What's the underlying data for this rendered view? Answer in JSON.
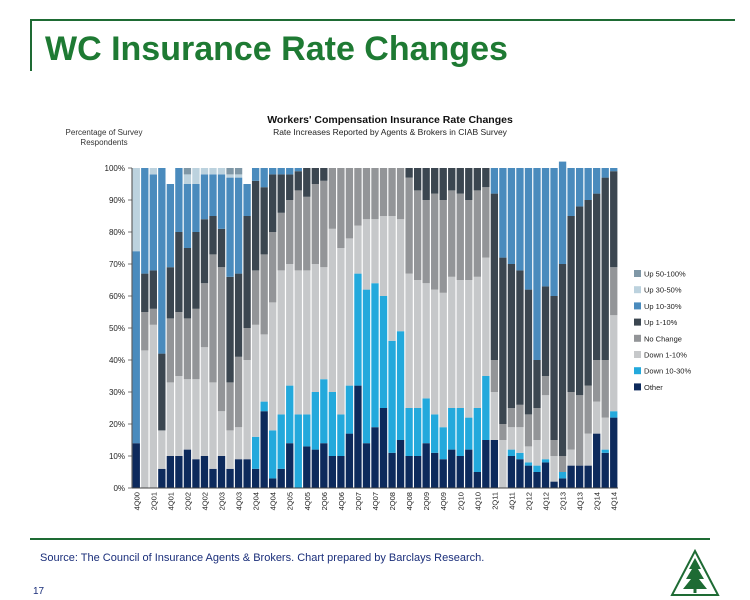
{
  "slide": {
    "title": "WC Insurance Rate Changes",
    "source": "Source: The Council of Insurance Agents & Brokers.  Chart prepared by Barclays Research.",
    "page_number": "17",
    "accent_color": "#1e7a33",
    "logo_icon": "tree-logo-icon"
  },
  "chart_data": {
    "type": "bar",
    "stacked": true,
    "title": "Workers' Compensation Insurance Rate Changes",
    "subtitle": "Rate Increases Reported by Agents & Brokers in CIAB Survey",
    "ylabel": "Percentage of Survey Respondents",
    "ylim": [
      0,
      100
    ],
    "yticks": [
      "0%",
      "10%",
      "20%",
      "30%",
      "40%",
      "50%",
      "60%",
      "70%",
      "80%",
      "90%",
      "100%"
    ],
    "grid": false,
    "legend_position": "right",
    "categories": [
      "4Q00",
      "1Q01",
      "2Q01",
      "3Q01",
      "4Q01",
      "1Q02",
      "2Q02",
      "3Q02",
      "4Q02",
      "1Q03",
      "2Q03",
      "3Q03",
      "4Q03",
      "1Q04",
      "2Q04",
      "3Q04",
      "4Q04",
      "1Q05",
      "2Q05",
      "3Q05",
      "4Q05",
      "1Q06",
      "2Q06",
      "3Q06",
      "4Q06",
      "1Q07",
      "2Q07",
      "3Q07",
      "4Q07",
      "1Q08",
      "2Q08",
      "3Q08",
      "4Q08",
      "1Q09",
      "2Q09",
      "3Q09",
      "4Q09",
      "1Q10",
      "2Q10",
      "3Q10",
      "4Q10",
      "1Q11",
      "2Q11",
      "3Q11",
      "4Q11",
      "1Q12",
      "2Q12",
      "3Q12",
      "4Q12",
      "1Q13",
      "2Q13",
      "3Q13",
      "4Q13",
      "1Q14",
      "2Q14",
      "3Q14",
      "4Q14"
    ],
    "tick_labels": [
      "4Q00",
      "2Q01",
      "4Q01",
      "2Q02",
      "4Q02",
      "2Q03",
      "4Q03",
      "2Q04",
      "4Q04",
      "2Q05",
      "4Q05",
      "2Q06",
      "4Q06",
      "2Q07",
      "4Q07",
      "2Q08",
      "4Q08",
      "2Q09",
      "4Q09",
      "2Q10",
      "4Q10",
      "2Q11",
      "4Q11",
      "2Q12",
      "4Q12",
      "2Q13",
      "4Q13",
      "2Q14",
      "4Q14"
    ],
    "series": [
      {
        "name": "Up 50-100%",
        "color": "#7f97a6",
        "values": [
          0,
          0,
          0,
          0,
          0,
          0,
          2,
          0,
          0,
          0,
          0,
          2,
          2,
          0,
          0,
          0,
          0,
          0,
          0,
          0,
          0,
          0,
          0,
          0,
          0,
          0,
          0,
          0,
          0,
          0,
          0,
          0,
          0,
          0,
          0,
          0,
          0,
          0,
          0,
          0,
          0,
          0,
          0,
          0,
          0,
          0,
          0,
          0,
          0,
          0,
          0,
          0,
          0,
          0,
          0,
          0,
          0
        ]
      },
      {
        "name": "Up 30-50%",
        "color": "#bcd2de",
        "values": [
          26,
          0,
          2,
          0,
          0,
          0,
          3,
          5,
          2,
          2,
          2,
          1,
          1,
          0,
          0,
          0,
          0,
          0,
          0,
          0,
          0,
          0,
          0,
          0,
          0,
          0,
          0,
          0,
          0,
          0,
          0,
          0,
          0,
          0,
          0,
          0,
          0,
          0,
          0,
          0,
          0,
          0,
          0,
          0,
          0,
          0,
          0,
          0,
          0,
          0,
          0,
          0,
          0,
          0,
          0,
          0,
          0
        ]
      },
      {
        "name": "Up 10-30%",
        "color": "#4a8bbd",
        "values": [
          60,
          33,
          30,
          58,
          26,
          20,
          20,
          15,
          14,
          13,
          17,
          31,
          30,
          10,
          4,
          6,
          2,
          2,
          2,
          1,
          0,
          0,
          0,
          0,
          0,
          0,
          0,
          0,
          0,
          0,
          0,
          0,
          0,
          0,
          0,
          0,
          0,
          0,
          0,
          0,
          0,
          0,
          8,
          28,
          30,
          32,
          38,
          60,
          37,
          40,
          32,
          15,
          12,
          10,
          8,
          3,
          1
        ]
      },
      {
        "name": "Up 1-10%",
        "color": "#3b4650",
        "values": [
          0,
          12,
          12,
          24,
          16,
          25,
          22,
          24,
          20,
          12,
          12,
          33,
          26,
          35,
          28,
          21,
          18,
          12,
          8,
          6,
          9,
          5,
          4,
          0,
          0,
          0,
          0,
          0,
          0,
          0,
          0,
          0,
          3,
          7,
          10,
          8,
          10,
          7,
          8,
          10,
          7,
          6,
          52,
          52,
          45,
          42,
          39,
          15,
          28,
          45,
          60,
          55,
          59,
          58,
          52,
          57,
          30
        ]
      },
      {
        "name": "No Change",
        "color": "#939598",
        "values": [
          0,
          12,
          5,
          0,
          20,
          20,
          19,
          22,
          20,
          40,
          45,
          15,
          22,
          10,
          17,
          25,
          22,
          18,
          20,
          25,
          23,
          25,
          27,
          19,
          25,
          22,
          18,
          16,
          16,
          15,
          15,
          16,
          30,
          28,
          26,
          30,
          29,
          27,
          27,
          25,
          27,
          22,
          10,
          5,
          6,
          7,
          10,
          10,
          6,
          5,
          5,
          18,
          22,
          15,
          13,
          18,
          15
        ]
      },
      {
        "name": "Down 1-10%",
        "color": "#c6c8ca",
        "values": [
          0,
          43,
          51,
          12,
          23,
          25,
          22,
          25,
          34,
          27,
          14,
          12,
          10,
          31,
          35,
          21,
          40,
          45,
          38,
          45,
          45,
          40,
          35,
          51,
          52,
          46,
          15,
          22,
          20,
          25,
          39,
          35,
          42,
          40,
          36,
          39,
          42,
          41,
          40,
          43,
          41,
          37,
          15,
          15,
          7,
          8,
          5,
          8,
          20,
          8,
          0,
          5,
          0,
          10,
          10,
          10,
          30
        ]
      },
      {
        "name": "Down 10-30%",
        "color": "#23a9dc",
        "values": [
          0,
          0,
          0,
          0,
          0,
          0,
          0,
          0,
          0,
          0,
          0,
          0,
          0,
          0,
          10,
          3,
          15,
          17,
          18,
          23,
          10,
          18,
          20,
          20,
          13,
          15,
          35,
          48,
          45,
          35,
          35,
          34,
          15,
          15,
          14,
          12,
          10,
          13,
          15,
          10,
          20,
          20,
          0,
          0,
          2,
          2,
          1,
          2,
          1,
          0,
          2,
          0,
          0,
          0,
          0,
          1,
          2
        ]
      },
      {
        "name": "Other",
        "color": "#0d2a5c",
        "values": [
          14,
          0,
          0,
          6,
          10,
          10,
          12,
          9,
          10,
          6,
          10,
          6,
          9,
          9,
          6,
          24,
          3,
          6,
          14,
          0,
          13,
          12,
          14,
          10,
          10,
          17,
          32,
          14,
          19,
          25,
          11,
          15,
          10,
          10,
          14,
          11,
          9,
          12,
          10,
          12,
          5,
          15,
          15,
          0,
          10,
          9,
          7,
          5,
          8,
          2,
          3,
          7,
          7,
          7,
          17,
          11,
          22
        ]
      }
    ],
    "legend": [
      "Up 50-100%",
      "Up 30-50%",
      "Up 10-30%",
      "Up 1-10%",
      "No Change",
      "Down 1-10%",
      "Down 10-30%",
      "Other"
    ]
  }
}
